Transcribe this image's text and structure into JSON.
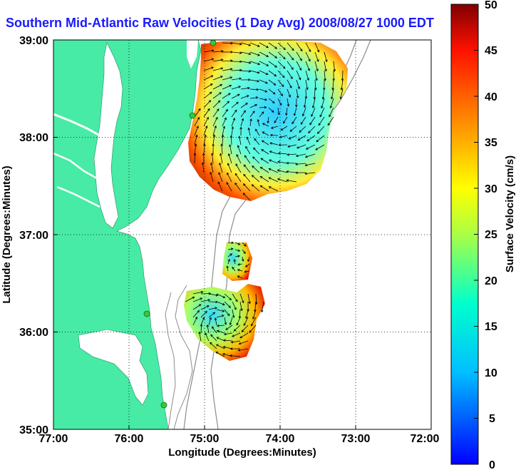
{
  "title": "Southern Mid-Atlantic Raw Velocities (1 Day Avg) 2008/08/27 1000 EDT",
  "x_axis": {
    "label": "Longitude (Degrees:Minutes)",
    "ticks": [
      "77:00",
      "76:00",
      "75:00",
      "74:00",
      "73:00",
      "72:00"
    ]
  },
  "y_axis": {
    "label": "Latitude (Degrees:Minutes)",
    "ticks": [
      "39:00",
      "38:00",
      "37:00",
      "36:00",
      "35:00"
    ]
  },
  "colorbar": {
    "label": "Surface Velocity (cm/s)",
    "ticks": [
      "50",
      "45",
      "40",
      "35",
      "30",
      "25",
      "20",
      "15",
      "10",
      "5",
      "0"
    ],
    "min": 0,
    "max": 50
  },
  "colors": {
    "land": "#47eba5",
    "water": "#ffffff",
    "title": "#1a1aff",
    "bathymetry": "#8c8c8c",
    "station": "#33cc33"
  },
  "map_extent": {
    "lon": [
      -77,
      -72
    ],
    "lat": [
      35,
      39
    ]
  },
  "grid": "dotted"
}
